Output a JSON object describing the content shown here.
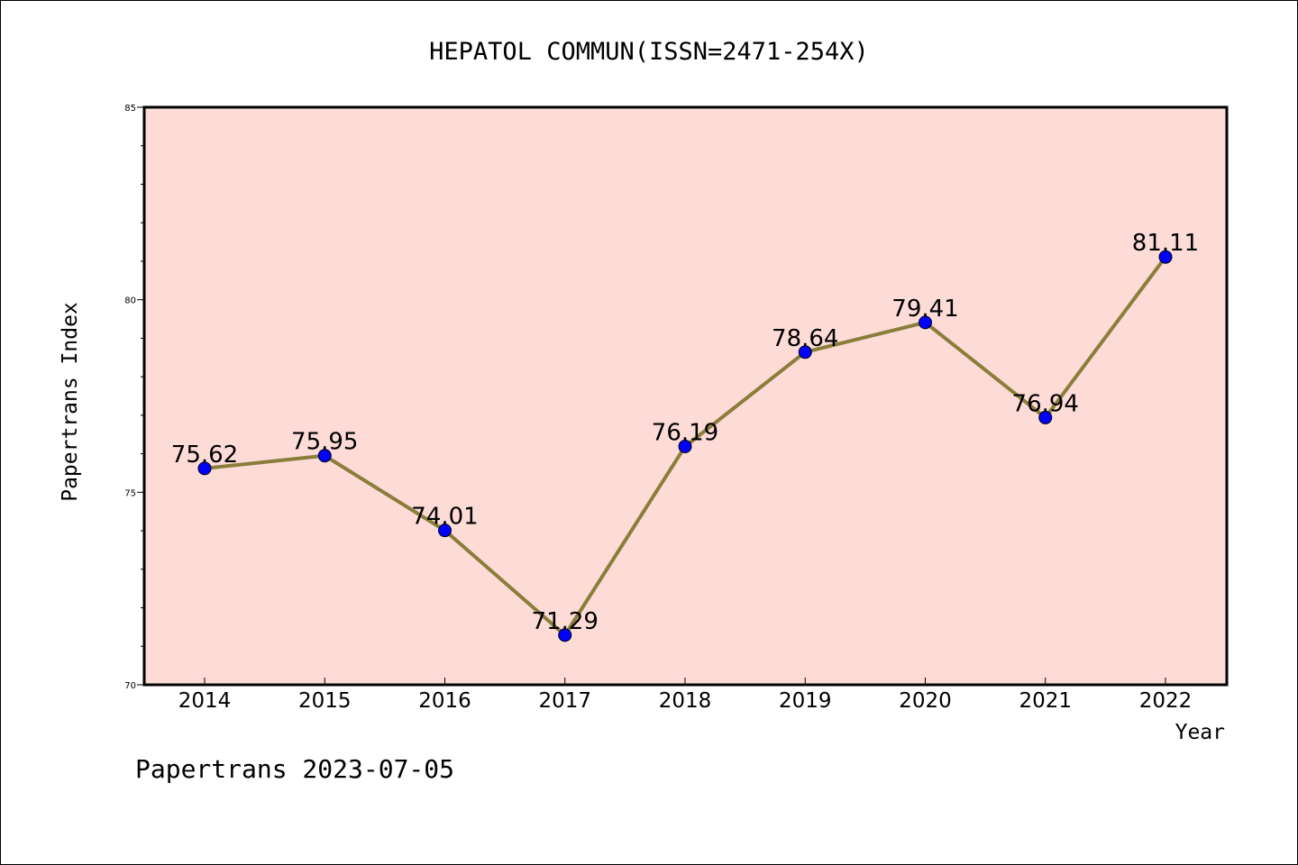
{
  "chart_data": {
    "type": "line",
    "title": "HEPATOL COMMUN(ISSN=2471-254X)",
    "xlabel": "Year",
    "ylabel": "Papertrans Index",
    "categories": [
      "2014",
      "2015",
      "2016",
      "2017",
      "2018",
      "2019",
      "2020",
      "2021",
      "2022"
    ],
    "series": [
      {
        "values": [
          75.62,
          75.95,
          74.01,
          71.29,
          76.19,
          78.64,
          79.41,
          76.94,
          81.11
        ],
        "labels": [
          "75.62",
          "75.95",
          "74.01",
          "71.29",
          "76.19",
          "78.64",
          "79.41",
          "76.94",
          "81.11"
        ]
      }
    ],
    "ylim": [
      70,
      85
    ],
    "yticks": [
      "70",
      "75",
      "80",
      "85"
    ],
    "grid": false,
    "legend": "none",
    "colors": {
      "plot_background": "#fddcd8",
      "line": "#8b7d3a",
      "marker": "#0000ff"
    }
  },
  "footer": {
    "text": "Papertrans 2023-07-05"
  }
}
